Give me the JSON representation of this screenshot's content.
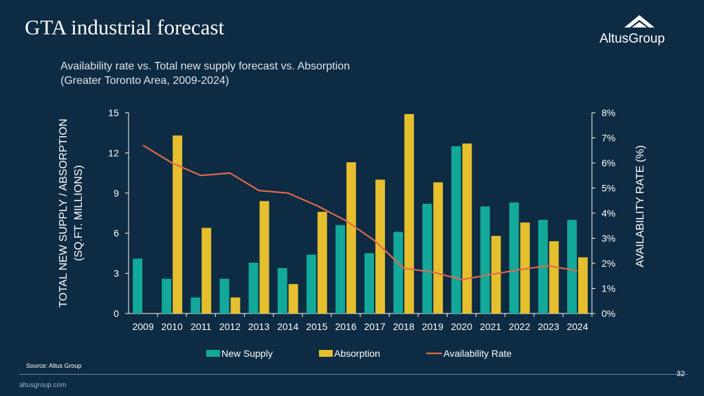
{
  "slide": {
    "title": "GTA industrial forecast",
    "subtitle_line1": "Availability rate vs. Total new supply forecast vs. Absorption",
    "subtitle_line2": "(Greater Toronto Area, 2009-2024)",
    "source": "Source:  Altus Group",
    "page_number": "32",
    "website": "altusgroup.com",
    "logo_text": "AltusGroup"
  },
  "colors": {
    "background": "#0d2b42",
    "new_supply": "#12a99a",
    "absorption": "#e5bf2e",
    "availability_rate": "#e0694a",
    "axis": "#ffffff"
  },
  "chart_data": {
    "type": "bar",
    "title": "Availability rate vs. Total new supply forecast vs. Absorption",
    "categories": [
      "2009",
      "2010",
      "2011",
      "2012",
      "2013",
      "2014",
      "2015",
      "2016",
      "2017",
      "2018",
      "2019",
      "2020",
      "2021",
      "2022",
      "2023",
      "2024"
    ],
    "series": [
      {
        "name": "New Supply",
        "type": "bar",
        "axis": "left",
        "values": [
          4.1,
          2.6,
          1.2,
          2.6,
          3.8,
          3.4,
          4.4,
          6.6,
          4.5,
          6.1,
          8.2,
          12.5,
          8.0,
          8.3,
          7.0,
          7.0
        ]
      },
      {
        "name": "Absorption",
        "type": "bar",
        "axis": "left",
        "values": [
          0.0,
          13.3,
          6.4,
          1.2,
          8.4,
          2.2,
          7.6,
          11.3,
          10.0,
          14.9,
          9.8,
          12.7,
          5.8,
          6.8,
          5.4,
          4.2
        ]
      },
      {
        "name": "Availability Rate",
        "type": "line",
        "axis": "right",
        "values": [
          6.7,
          6.0,
          5.5,
          5.6,
          4.9,
          4.8,
          4.3,
          3.7,
          2.9,
          1.8,
          1.65,
          1.35,
          1.55,
          1.75,
          1.9,
          1.7
        ]
      }
    ],
    "ylabel_left_line1": "TOTAL NEW SUPPLY / ABSORPTION",
    "ylabel_left_line2": "(SQ.FT. MILLIONS)",
    "ylabel_right": "AVAILABILITY RATE (%)",
    "ylim_left": [
      0,
      15
    ],
    "ylim_right": [
      0,
      8
    ],
    "yticks_left": [
      "0",
      "3",
      "6",
      "9",
      "12",
      "15"
    ],
    "yticks_right": [
      "0%",
      "1%",
      "2%",
      "3%",
      "4%",
      "5%",
      "6%",
      "7%",
      "8%"
    ],
    "legend": [
      "New Supply",
      "Absorption",
      "Availability Rate"
    ],
    "legend_position": "bottom",
    "grid": false
  }
}
